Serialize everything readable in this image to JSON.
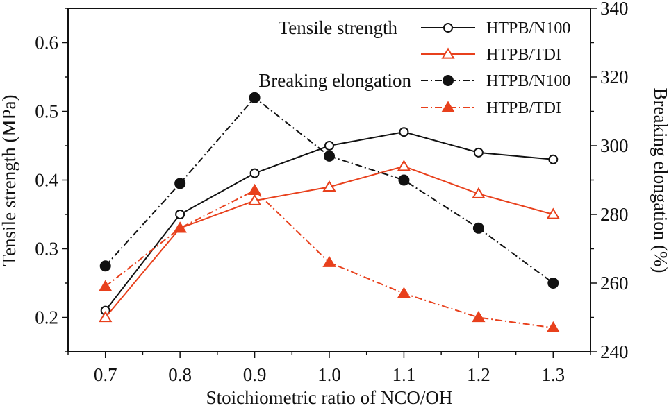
{
  "chart_data": {
    "type": "line",
    "x": [
      0.7,
      0.8,
      0.9,
      1.0,
      1.1,
      1.2,
      1.3
    ],
    "x_ticks": [
      "0.7",
      "0.8",
      "0.9",
      "1.0",
      "1.1",
      "1.2",
      "1.3"
    ],
    "xlabel": "Stoichiometric ratio of NCO/OH",
    "xlim": [
      0.65,
      1.35
    ],
    "left_axis": {
      "label": "Tensile strength (MPa)",
      "ylim": [
        0.15,
        0.65
      ],
      "ticks": [
        "0.2",
        "0.3",
        "0.4",
        "0.5",
        "0.6"
      ]
    },
    "right_axis": {
      "label": "Breaking elongation (%)",
      "ylim": [
        240,
        340
      ],
      "ticks": [
        "240",
        "260",
        "280",
        "300",
        "320",
        "340"
      ]
    },
    "legend_groups": [
      {
        "heading": "Tensile strength",
        "entries": [
          "HTPB/N100",
          "HTPB/TDI"
        ]
      },
      {
        "heading": "Breaking elongation",
        "entries": [
          "HTPB/N100",
          "HTPB/TDI"
        ]
      }
    ],
    "series": [
      {
        "name": "HTPB/N100",
        "group": "Tensile strength",
        "axis": "left",
        "marker": "circle-open",
        "line": "solid",
        "color": "#111111",
        "values": [
          0.21,
          0.35,
          0.41,
          0.45,
          0.47,
          0.44,
          0.43
        ]
      },
      {
        "name": "HTPB/TDI",
        "group": "Tensile strength",
        "axis": "left",
        "marker": "triangle-open",
        "line": "solid",
        "color": "#e8401c",
        "values": [
          0.2,
          0.33,
          0.37,
          0.39,
          0.42,
          0.38,
          0.35
        ]
      },
      {
        "name": "HTPB/N100",
        "group": "Breaking elongation",
        "axis": "right",
        "marker": "circle-filled",
        "line": "dashdot",
        "color": "#111111",
        "values": [
          265,
          289,
          314,
          297,
          290,
          276,
          260
        ]
      },
      {
        "name": "HTPB/TDI",
        "group": "Breaking elongation",
        "axis": "right",
        "marker": "triangle-filled",
        "line": "dashdot",
        "color": "#e8401c",
        "values": [
          259,
          276,
          287,
          266,
          257,
          250,
          247
        ]
      }
    ]
  }
}
